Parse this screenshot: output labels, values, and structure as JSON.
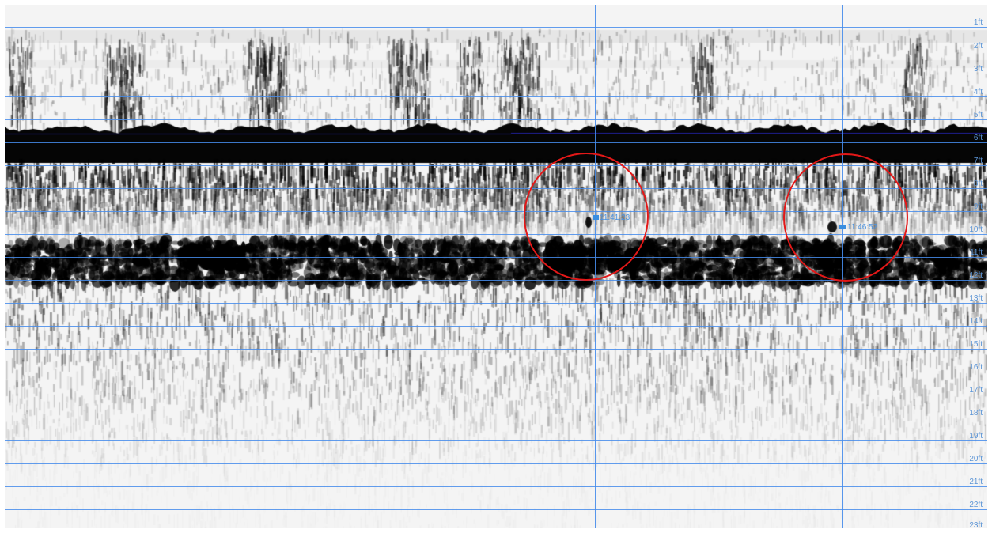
{
  "depth_scale": {
    "labels": [
      "1ft",
      "2ft",
      "3ft",
      "4ft",
      "5ft",
      "6ft",
      "7ft",
      "8ft",
      "9ft",
      "10ft",
      "11ft",
      "12ft",
      "13ft",
      "14ft",
      "15ft",
      "16ft",
      "17ft",
      "18ft",
      "19ft",
      "20ft",
      "21ft",
      "22ft",
      "23ft"
    ]
  },
  "fish_marks": [
    {
      "label": "11:41:23",
      "depth_ft": 9.3
    },
    {
      "label": "11:46:52",
      "depth_ft": 9.7
    }
  ],
  "colors": {
    "grid": "#468ceb",
    "circle": "#e31818",
    "label": "#5c95d6"
  }
}
